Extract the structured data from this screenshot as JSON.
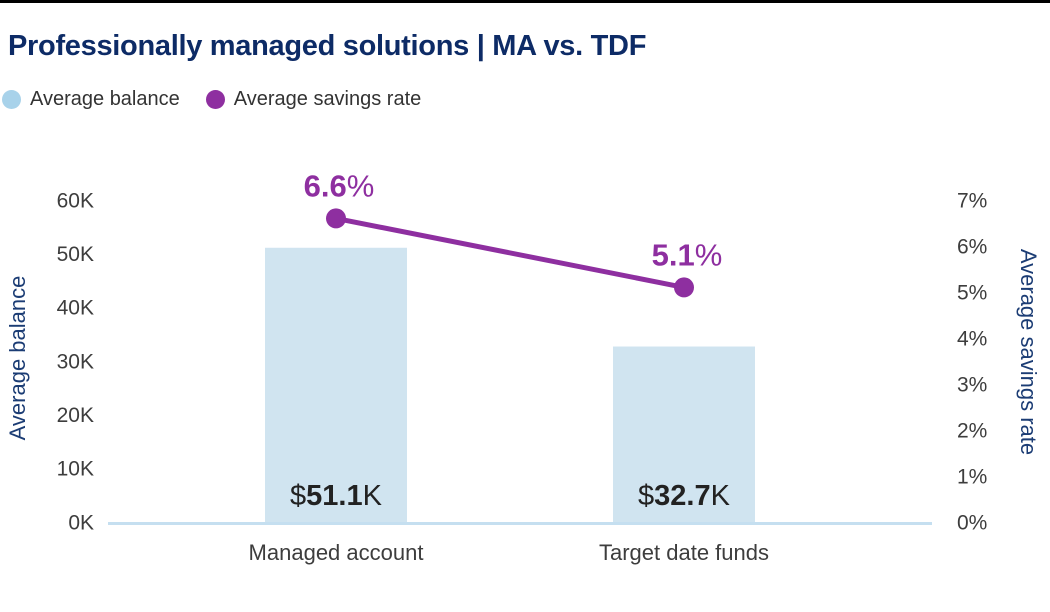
{
  "header": {
    "title": "Professionally managed solutions | MA vs. TDF"
  },
  "legend": {
    "items": [
      {
        "label": "Average balance"
      },
      {
        "label": "Average savings rate"
      }
    ]
  },
  "chart_data": {
    "type": "combo",
    "categories": [
      "Managed account",
      "Target date funds"
    ],
    "series": [
      {
        "name": "Average balance",
        "type": "bar",
        "axis": "left",
        "values": [
          51100,
          32700
        ],
        "value_labels": [
          {
            "prefix": "$",
            "number": "51.1",
            "suffix": "K"
          },
          {
            "prefix": "$",
            "number": "32.7",
            "suffix": "K"
          }
        ],
        "color": "#d0e4f0"
      },
      {
        "name": "Average savings rate",
        "type": "line",
        "axis": "right",
        "values": [
          6.6,
          5.1
        ],
        "value_labels": [
          {
            "number": "6.6",
            "suffix": "%"
          },
          {
            "number": "5.1",
            "suffix": "%"
          }
        ],
        "color": "#8e2fa0"
      }
    ],
    "left_axis": {
      "title": "Average balance",
      "range": [
        0,
        60000
      ],
      "ticks": [
        "0K",
        "10K",
        "20K",
        "30K",
        "40K",
        "50K",
        "60K"
      ]
    },
    "right_axis": {
      "title": "Average savings rate",
      "range": [
        0,
        7
      ],
      "ticks": [
        "0%",
        "1%",
        "2%",
        "3%",
        "4%",
        "5%",
        "6%",
        "7%"
      ]
    },
    "grid": false,
    "legend_position": "top-left"
  },
  "colors": {
    "top_border": "#000000",
    "title": "#0d2b66",
    "axis_title": "#1b3c74",
    "tick_label": "#3d3d3d",
    "legend_text": "#333333",
    "bar_fill": "#d0e4f0",
    "baseline": "#c5dff0",
    "legend_balance_dot": "#a8d2ea",
    "savings_line": "#8e2fa0",
    "value_label": "#222222"
  }
}
